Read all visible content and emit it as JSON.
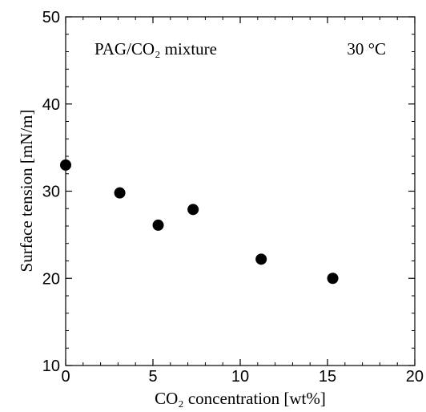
{
  "chart_data": {
    "type": "scatter",
    "title": "",
    "xlabel": "CO₂ concentration [wt%]",
    "ylabel": "Surface tension [mN/m]",
    "xlim": [
      0,
      20
    ],
    "ylim": [
      10,
      50
    ],
    "xticks": [
      "0",
      "5",
      "10",
      "15",
      "20"
    ],
    "yticks": [
      "10",
      "20",
      "30",
      "40",
      "50"
    ],
    "grid": false,
    "legend": "none",
    "annotations": [
      "PAG/CO₂ mixture",
      "30  °C"
    ],
    "marker_color": "#000000",
    "series": [
      {
        "x": [
          0,
          3.1,
          5.3,
          7.3,
          11.2,
          15.3
        ],
        "y": [
          33.0,
          29.8,
          26.1,
          27.9,
          22.2,
          20.0
        ]
      }
    ]
  }
}
